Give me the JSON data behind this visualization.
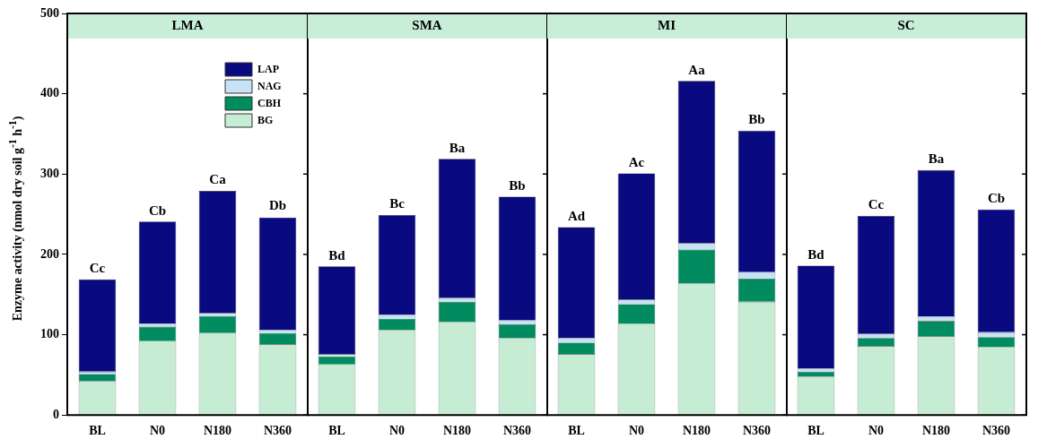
{
  "chart_data": [
    {
      "type": "bar",
      "stacked": true,
      "title": "LMA",
      "ylabel": "Enzyme activity (nmol dry soil g$^{-1}$ h$^{-1}$)",
      "categories": [
        "BL",
        "N0",
        "N180",
        "N360"
      ],
      "ylim": [
        0,
        500
      ],
      "yticks": [
        0,
        100,
        200,
        300,
        400,
        500
      ],
      "legend": "top right",
      "series": [
        {
          "name": "BG",
          "color": "#c6ecd3",
          "values": [
            42,
            92,
            102,
            88
          ]
        },
        {
          "name": "CBH",
          "color": "#008c5f",
          "values": [
            9,
            18,
            21,
            14
          ]
        },
        {
          "name": "NAG",
          "color": "#c6e2f5",
          "values": [
            3,
            4,
            4,
            4
          ]
        },
        {
          "name": "LAP",
          "color": "#0a0a80",
          "values": [
            115,
            127,
            152,
            140
          ]
        }
      ],
      "annotations": [
        {
          "text": "Cc",
          "x": "BL",
          "y": 169
        },
        {
          "text": "Cb",
          "x": "N0",
          "y": 241
        },
        {
          "text": "Ca",
          "x": "N180",
          "y": 280
        },
        {
          "text": "Db",
          "x": "N360",
          "y": 247
        }
      ]
    },
    {
      "type": "bar",
      "stacked": true,
      "title": "SMA",
      "categories": [
        "BL",
        "N0",
        "N180",
        "N360"
      ],
      "ylim": [
        0,
        500
      ],
      "yticks": [
        0,
        100,
        200,
        300,
        400,
        500
      ],
      "tick_labels": "x",
      "series": [
        {
          "color": "#c6ecd3",
          "values": [
            63,
            106,
            116,
            96
          ]
        },
        {
          "color": "#008c5f",
          "values": [
            10,
            14,
            25,
            17
          ]
        },
        {
          "color": "#c6e2f5",
          "values": [
            3,
            5,
            5,
            5
          ]
        },
        {
          "color": "#0a0a80",
          "values": [
            109,
            124,
            173,
            154
          ]
        }
      ],
      "annotations": [
        {
          "text": "Bd",
          "x": "BL",
          "y": 185
        },
        {
          "text": "Bc",
          "x": "N0",
          "y": 249
        },
        {
          "text": "Ba",
          "x": "N180",
          "y": 319
        },
        {
          "text": "Bb",
          "x": "N360",
          "y": 272
        }
      ]
    },
    {
      "type": "bar",
      "stacked": true,
      "title": "MI",
      "categories": [
        "BL",
        "N0",
        "N180",
        "N360"
      ],
      "ylim": [
        0,
        500
      ],
      "yticks": [
        0,
        100,
        200,
        300,
        400,
        500
      ],
      "tick_labels": "x",
      "series": [
        {
          "color": "#c6ecd3",
          "values": [
            76,
            114,
            164,
            141
          ]
        },
        {
          "color": "#008c5f",
          "values": [
            14,
            24,
            42,
            29
          ]
        },
        {
          "color": "#c6e2f5",
          "values": [
            6,
            6,
            8,
            8
          ]
        },
        {
          "color": "#0a0a80",
          "values": [
            138,
            157,
            202,
            176
          ]
        }
      ],
      "annotations": [
        {
          "text": "Ad",
          "x": "BL",
          "y": 234
        },
        {
          "text": "Ac",
          "x": "N0",
          "y": 301
        },
        {
          "text": "Aa",
          "x": "N180",
          "y": 416
        },
        {
          "text": "Bb",
          "x": "N360",
          "y": 354
        }
      ]
    },
    {
      "type": "bar",
      "stacked": true,
      "title": "SC",
      "categories": [
        "BL",
        "N0",
        "N180",
        "N360"
      ],
      "ylim": [
        0,
        500
      ],
      "yticks": [
        0,
        100,
        200,
        300,
        400,
        500
      ],
      "tick_labels": "x",
      "series": [
        {
          "color": "#c6ecd3",
          "values": [
            48,
            86,
            98,
            85
          ]
        },
        {
          "color": "#008c5f",
          "values": [
            6,
            10,
            19,
            12
          ]
        },
        {
          "color": "#c6e2f5",
          "values": [
            4,
            5,
            6,
            6
          ]
        },
        {
          "color": "#0a0a80",
          "values": [
            128,
            147,
            182,
            153
          ]
        }
      ],
      "annotations": [
        {
          "text": "Bd",
          "x": "BL",
          "y": 186
        },
        {
          "text": "Cc",
          "x": "N0",
          "y": 248
        },
        {
          "text": "Ba",
          "x": "N180",
          "y": 305
        },
        {
          "text": "Cb",
          "x": "N360",
          "y": 256
        }
      ]
    }
  ]
}
